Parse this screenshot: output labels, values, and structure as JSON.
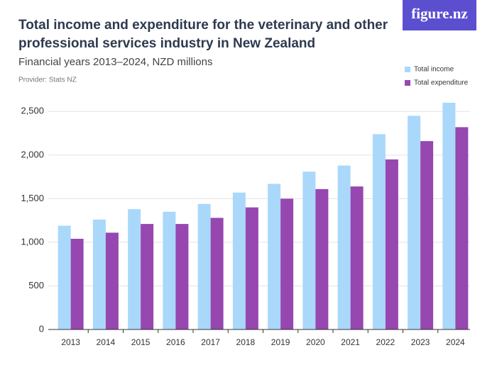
{
  "brand": "figure.nz",
  "chart_data": {
    "type": "bar",
    "title": [
      "Total income and expenditure for the veterinary and other",
      "professional services industry in New Zealand"
    ],
    "subtitle": "Financial years 2013–2024, NZD millions",
    "provider": "Provider: Stats NZ",
    "categories": [
      "2013",
      "2014",
      "2015",
      "2016",
      "2017",
      "2018",
      "2019",
      "2020",
      "2021",
      "2022",
      "2023",
      "2024"
    ],
    "series": [
      {
        "name": "Total income",
        "color": "#aad8fb",
        "values": [
          1190,
          1260,
          1380,
          1350,
          1440,
          1570,
          1670,
          1810,
          1880,
          2240,
          2450,
          2600
        ]
      },
      {
        "name": "Total expenditure",
        "color": "#9647b0",
        "values": [
          1040,
          1110,
          1210,
          1210,
          1280,
          1400,
          1500,
          1610,
          1640,
          1950,
          2160,
          2320
        ]
      }
    ],
    "ylim": [
      0,
      2600
    ],
    "yticks": [
      0,
      500,
      {
        "value": 1000,
        "label": "1,000"
      },
      {
        "value": 1500,
        "label": "1,500"
      },
      {
        "value": 2000,
        "label": "2,000"
      },
      {
        "value": 2500,
        "label": "2,500"
      }
    ],
    "grid": true,
    "legend": "top-right"
  }
}
